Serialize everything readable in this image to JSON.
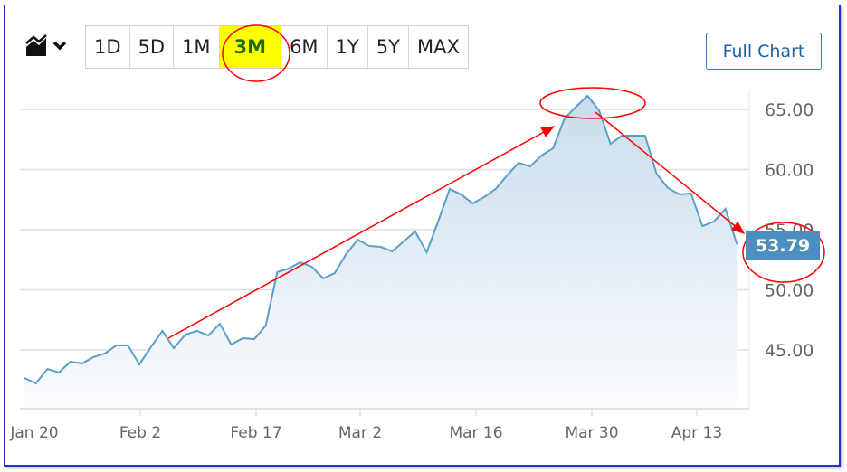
{
  "toolbar": {
    "chart_type_icon": "area-chart-icon",
    "ranges": [
      "1D",
      "5D",
      "1M",
      "3M",
      "6M",
      "1Y",
      "5Y",
      "MAX"
    ],
    "active_range": "3M",
    "full_chart_label": "Full Chart"
  },
  "colors": {
    "line": "#5b9fc9",
    "fill": "#d3e4ef",
    "price_badge": "#4a8fc0",
    "annotation": "#ff0000",
    "highlight": "#ffff00"
  },
  "chart_data": {
    "type": "area",
    "xlabel": "",
    "ylabel": "",
    "x_tick_labels": [
      "Jan 20",
      "Feb 2",
      "Feb 17",
      "Mar 2",
      "Mar 16",
      "Mar 30",
      "Apr 13"
    ],
    "y_tick_labels": [
      "65.00",
      "60.00",
      "55.00",
      "50.00",
      "45.00"
    ],
    "y_ticks": [
      65,
      60,
      55,
      50,
      45
    ],
    "ylim": [
      41.5,
      67.5
    ],
    "grid": true,
    "y_axis_side": "right",
    "values": [
      42.67,
      42.22,
      43.42,
      43.12,
      44.02,
      43.87,
      44.4,
      44.7,
      45.38,
      45.38,
      43.8,
      45.23,
      46.58,
      45.15,
      46.28,
      46.58,
      46.2,
      47.18,
      45.45,
      45.98,
      45.9,
      47.03,
      51.47,
      51.77,
      52.29,
      51.92,
      50.94,
      51.39,
      52.97,
      54.17,
      53.65,
      53.57,
      53.2,
      54.02,
      54.85,
      53.12,
      55.68,
      58.38,
      57.93,
      57.18,
      57.71,
      58.38,
      59.51,
      60.56,
      60.26,
      61.17,
      61.77,
      64.25,
      65.23,
      66.13,
      64.92,
      62.14,
      62.82,
      62.82,
      62.82,
      59.66,
      58.46,
      57.93,
      58.01,
      55.3,
      55.68,
      56.73,
      53.79
    ],
    "last_price": "53.79"
  }
}
